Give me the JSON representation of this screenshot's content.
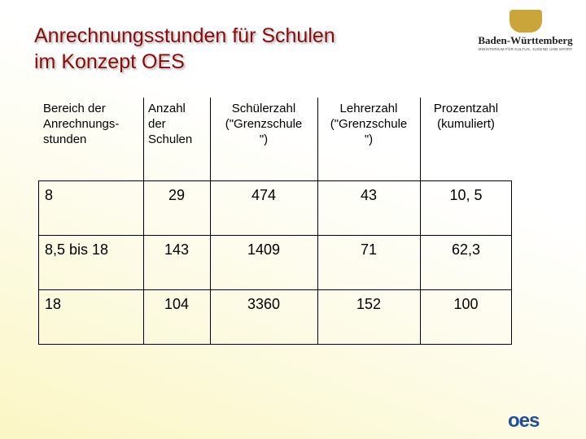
{
  "header": {
    "title_lines": [
      "Anrechnungsstunden für Schulen",
      "im Konzept OES"
    ],
    "logo_name": "Baden-Württemberg",
    "logo_subtitle": "MINISTERIUM FÜR KULTUS, JUGEND UND SPORT"
  },
  "table": {
    "columns": [
      [
        "Bereich der",
        "Anrechnungs-",
        "stunden"
      ],
      [
        "Anzahl",
        "der",
        "Schulen"
      ],
      [
        "Schülerzahl",
        "(\"Grenzschule",
        "\")"
      ],
      [
        "Lehrerzahl",
        "(\"Grenzschule",
        "\")"
      ],
      [
        "Prozentzahl",
        "(kumuliert)"
      ]
    ],
    "rows": [
      [
        "8",
        "29",
        "474",
        "43",
        "10, 5"
      ],
      [
        "8,5 bis 18",
        "143",
        "1409",
        "71",
        "62,3"
      ],
      [
        "18",
        "104",
        "3360",
        "152",
        "100"
      ]
    ]
  },
  "footer": {
    "logo": "oes"
  }
}
